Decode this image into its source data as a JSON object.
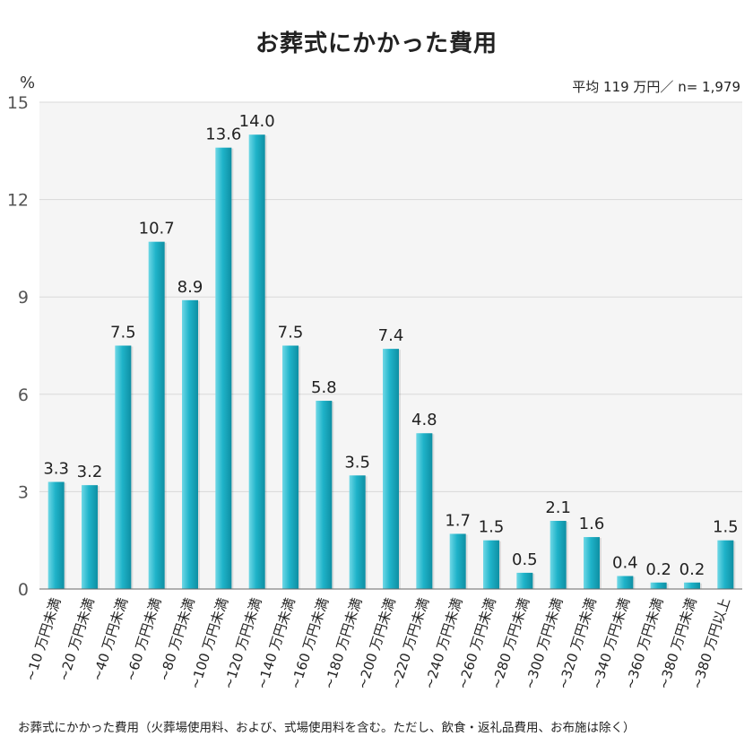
{
  "chart_data": {
    "type": "bar",
    "title": "お葬式にかかった費用",
    "unit_label": "%",
    "summary": "平均 119 万円／ n= 1,979",
    "footnote": "お葬式にかかった費用（火葬場使用料、および、式場使用料を含む。ただし、飲食・返礼品費用、お布施は除く）",
    "categories": [
      "~10 万円未満",
      "~20 万円未満",
      "~40 万円未満",
      "~60 万円未満",
      "~80 万円未満",
      "~100 万円未満",
      "~120 万円未満",
      "~140 万円未満",
      "~160 万円未満",
      "~180 万円未満",
      "~200 万円未満",
      "~220 万円未満",
      "~240 万円未満",
      "~260 万円未満",
      "~280 万円未満",
      "~300 万円未満",
      "~320 万円未満",
      "~340 万円未満",
      "~360 万円未満",
      "~380 万円未満",
      "~380 万円以上"
    ],
    "values": [
      3.3,
      3.2,
      7.5,
      10.7,
      8.9,
      13.6,
      14.0,
      7.5,
      5.8,
      3.5,
      7.4,
      4.8,
      1.7,
      1.5,
      0.5,
      2.1,
      1.6,
      0.4,
      0.2,
      0.2,
      1.5
    ],
    "value_labels": [
      "3.3",
      "3.2",
      "7.5",
      "10.7",
      "8.9",
      "13.6",
      "14.0",
      "7.5",
      "5.8",
      "3.5",
      "7.4",
      "4.8",
      "1.7",
      "1.5",
      "0.5",
      "2.1",
      "1.6",
      "0.4",
      "0.2",
      "0.2",
      "1.5"
    ],
    "yticks": [
      0,
      3,
      6,
      9,
      12,
      15
    ],
    "ylim": [
      0,
      15
    ],
    "grid": true,
    "colors": {
      "bar_main": "#1fb3c9",
      "bar_light": "#6fd8e6",
      "bar_dark": "#0e8fa3",
      "plot_bg": "#f5f5f5",
      "gridline": "#d9d9d9",
      "axis": "#666666"
    }
  }
}
